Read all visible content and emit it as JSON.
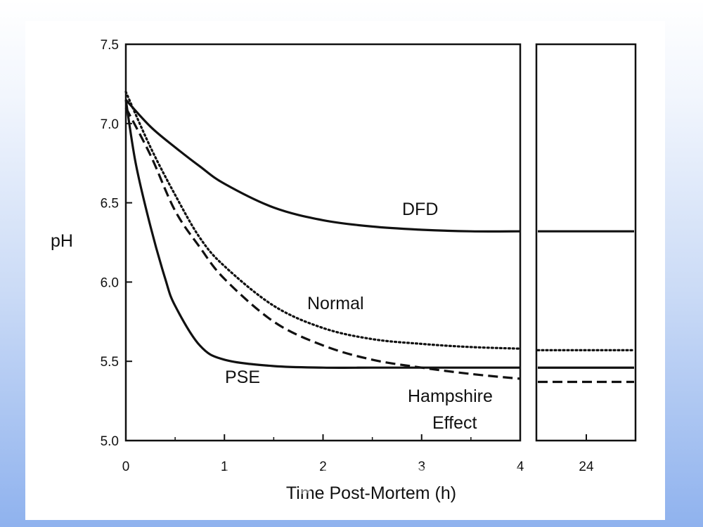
{
  "chart_data": {
    "type": "line",
    "title": "",
    "xlabel": "Time Post-Mortem (h)",
    "ylabel": "pH",
    "xlim": [
      0,
      4
    ],
    "ylim": [
      5.0,
      7.5
    ],
    "x_ticks": [
      "0",
      "1",
      "2",
      "3",
      "4"
    ],
    "y_ticks": [
      "5.0",
      "5.5",
      "6.0",
      "6.5",
      "7.0",
      "7.5"
    ],
    "extra_panel_tick": "24",
    "grid": false,
    "legend": "none",
    "series": [
      {
        "name": "DFD",
        "style": "solid",
        "x": [
          0,
          0.25,
          0.5,
          0.75,
          1,
          1.5,
          2,
          2.5,
          3,
          3.5,
          4
        ],
        "y": [
          7.15,
          6.98,
          6.85,
          6.73,
          6.62,
          6.47,
          6.39,
          6.35,
          6.33,
          6.32,
          6.32
        ],
        "at_24h": 6.32
      },
      {
        "name": "Normal",
        "style": "dotted",
        "x": [
          0,
          0.25,
          0.5,
          0.75,
          1,
          1.5,
          2,
          2.5,
          3,
          3.5,
          4
        ],
        "y": [
          7.2,
          6.85,
          6.55,
          6.28,
          6.1,
          5.85,
          5.71,
          5.64,
          5.61,
          5.59,
          5.58
        ],
        "at_24h": 5.57
      },
      {
        "name": "PSE",
        "style": "solid",
        "x": [
          0,
          0.1,
          0.25,
          0.4,
          0.5,
          0.75,
          1,
          1.5,
          2,
          2.5,
          3,
          4
        ],
        "y": [
          7.15,
          6.75,
          6.35,
          6.02,
          5.85,
          5.6,
          5.51,
          5.47,
          5.46,
          5.46,
          5.46,
          5.46
        ],
        "at_24h": 5.46
      },
      {
        "name": "Hampshire Effect",
        "style": "dashed",
        "x": [
          0,
          0.25,
          0.5,
          0.75,
          1,
          1.5,
          2,
          2.5,
          3,
          3.5,
          4
        ],
        "y": [
          7.1,
          6.8,
          6.45,
          6.22,
          6.02,
          5.75,
          5.6,
          5.51,
          5.46,
          5.42,
          5.39
        ],
        "at_24h": 5.37
      }
    ]
  },
  "labels": {
    "dfd": "DFD",
    "normal": "Normal",
    "pse": "PSE",
    "hampshire_1": "Hampshire",
    "hampshire_2": "Effect"
  },
  "watermark": "wedlinydomowe.pl"
}
